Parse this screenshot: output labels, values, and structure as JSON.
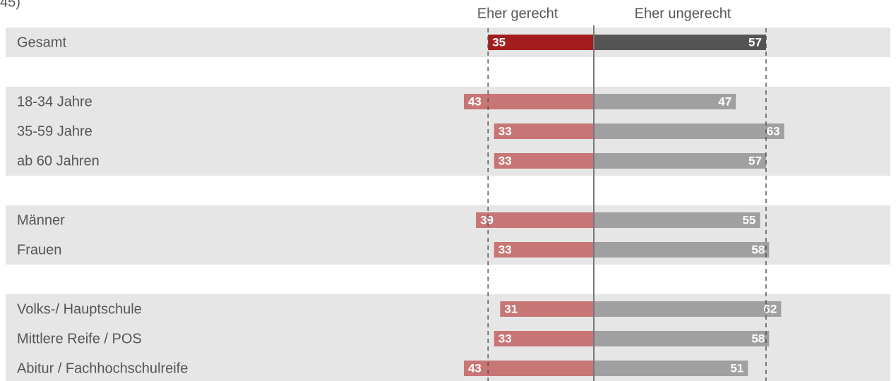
{
  "chart_data": {
    "type": "diverging_bar",
    "subtitle": "45)",
    "categories": [
      "Gesamt",
      null,
      "18-34 Jahre",
      "35-59 Jahre",
      "ab 60 Jahren",
      null,
      "Männer",
      "Frauen",
      null,
      "Volks-/ Hauptschule",
      "Mittlere Reife / POS",
      "Abitur / Fachhochschulreife"
    ],
    "series": [
      {
        "name": "Eher gerecht",
        "side": "left",
        "colors": [
          "#a51c1c",
          null,
          "#c87575",
          "#c87575",
          "#c87575",
          null,
          "#c87575",
          "#c87575",
          null,
          "#c87575",
          "#c87575",
          "#c87575"
        ],
        "values": [
          35,
          null,
          43,
          33,
          33,
          null,
          39,
          33,
          null,
          31,
          33,
          43
        ]
      },
      {
        "name": "Eher ungerecht",
        "side": "right",
        "colors": [
          "#555555",
          null,
          "#a0a0a0",
          "#a0a0a0",
          "#a0a0a0",
          null,
          "#a0a0a0",
          "#a0a0a0",
          null,
          "#a0a0a0",
          "#a0a0a0",
          "#a0a0a0"
        ],
        "values": [
          57,
          null,
          47,
          63,
          57,
          null,
          55,
          58,
          null,
          62,
          58,
          51
        ]
      }
    ]
  }
}
